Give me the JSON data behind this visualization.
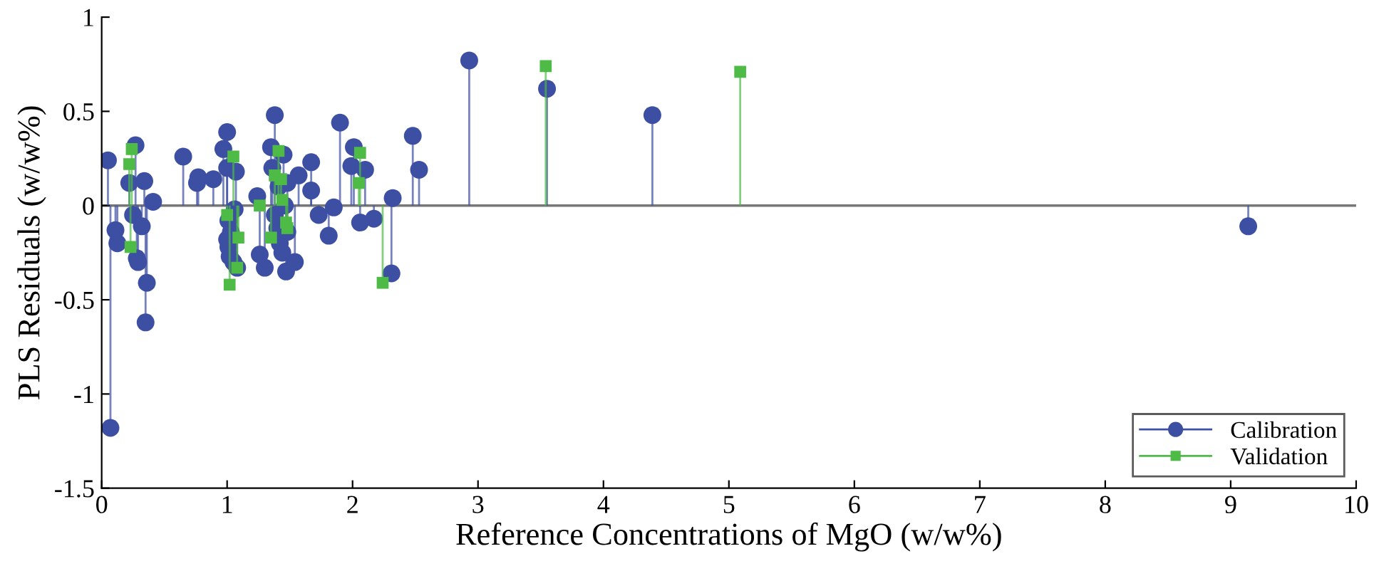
{
  "chart_data": {
    "type": "lollipop",
    "xlabel": "Reference Concentrations of MgO (w/w%)",
    "ylabel": "PLS Residuals (w/w%)",
    "xlim": [
      0,
      10
    ],
    "xticks": [
      0,
      1,
      2,
      3,
      4,
      5,
      6,
      7,
      8,
      9,
      10
    ],
    "ylim": [
      -1.5,
      1
    ],
    "yticks": [
      -1.5,
      -1,
      -0.5,
      0,
      0.5,
      1
    ],
    "grid": false,
    "ref_lines": [
      {
        "axis": "y",
        "value": 0,
        "color": "#777777",
        "line_style": "solid"
      }
    ],
    "legend": "bottom right",
    "series": [
      {
        "name": "Calibration",
        "color": "#3d4fa3",
        "marker": "circle",
        "x": [
          0.05,
          0.07,
          0.11,
          0.125,
          0.22,
          0.25,
          0.27,
          0.28,
          0.29,
          0.32,
          0.34,
          0.35,
          0.36,
          0.41,
          0.65,
          0.76,
          0.77,
          0.89,
          0.97,
          1.0,
          1.0,
          1.0,
          1.01,
          1.01,
          1.02,
          1.03,
          1.05,
          1.06,
          1.07,
          1.08,
          1.24,
          1.26,
          1.3,
          1.35,
          1.36,
          1.38,
          1.38,
          1.4,
          1.41,
          1.42,
          1.44,
          1.45,
          1.46,
          1.47,
          1.48,
          1.48,
          1.54,
          1.57,
          1.67,
          1.67,
          1.73,
          1.81,
          1.85,
          1.9,
          1.99,
          2.01,
          2.06,
          2.1,
          2.17,
          2.31,
          2.32,
          2.48,
          2.53,
          2.93,
          3.55,
          4.39,
          9.14
        ],
        "values": [
          0.24,
          -1.18,
          -0.13,
          -0.2,
          0.12,
          -0.05,
          0.32,
          -0.28,
          -0.3,
          -0.11,
          0.13,
          -0.62,
          -0.41,
          0.02,
          0.26,
          0.12,
          0.15,
          0.14,
          0.3,
          0.39,
          0.2,
          -0.18,
          -0.08,
          -0.22,
          -0.27,
          -0.14,
          -0.3,
          -0.02,
          0.18,
          -0.33,
          0.05,
          -0.26,
          -0.33,
          0.31,
          0.2,
          0.48,
          -0.05,
          -0.12,
          0.1,
          -0.2,
          -0.25,
          0.27,
          0.0,
          -0.35,
          0.12,
          -0.14,
          -0.3,
          0.16,
          0.23,
          0.08,
          -0.05,
          -0.16,
          -0.01,
          0.44,
          0.21,
          0.31,
          -0.09,
          0.19,
          -0.07,
          -0.36,
          0.04,
          0.37,
          0.19,
          0.77,
          0.62,
          0.48,
          -0.11
        ]
      },
      {
        "name": "Validation",
        "color": "#4dbb45",
        "marker": "square",
        "x": [
          0.22,
          0.24,
          0.23,
          1.0,
          1.02,
          1.05,
          1.09,
          1.08,
          1.26,
          1.35,
          1.38,
          1.41,
          1.43,
          1.44,
          1.47,
          1.48,
          2.05,
          2.06,
          2.24,
          3.54,
          5.09
        ],
        "values": [
          0.22,
          0.3,
          -0.22,
          -0.05,
          -0.42,
          0.26,
          -0.17,
          -0.33,
          0.0,
          -0.17,
          0.16,
          0.29,
          0.14,
          0.03,
          -0.09,
          -0.12,
          0.12,
          0.28,
          -0.41,
          0.74,
          0.71
        ]
      }
    ]
  }
}
